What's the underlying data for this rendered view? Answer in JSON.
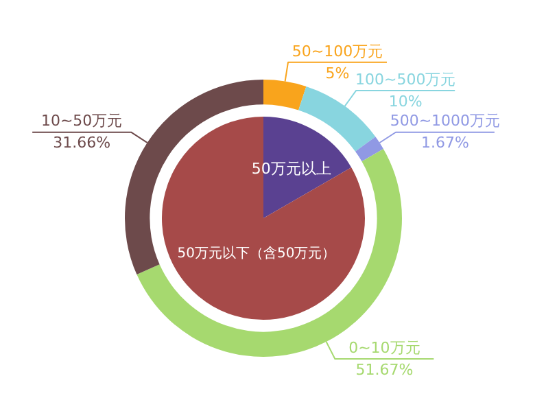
{
  "chart_data": [
    {
      "type": "donut",
      "categories": [
        "50~100万元",
        "100~500万元",
        "500~1000万元",
        "0~10万元",
        "10~50万元"
      ],
      "values": [
        5,
        10,
        1.67,
        51.67,
        31.66
      ],
      "colors": [
        "#f9a41c",
        "#88d5df",
        "#9099e4",
        "#a6d96f",
        "#6d4a4b"
      ],
      "value_labels": [
        "5%",
        "10%",
        "1.67%",
        "51.67%",
        "31.66%"
      ],
      "legend": false
    },
    {
      "type": "pie",
      "categories": [
        "50万元以上",
        "50万元以下（含50万元）"
      ],
      "values": [
        16.67,
        83.33
      ],
      "colors": [
        "#5a4191",
        "#a64a49"
      ],
      "legend": false
    }
  ]
}
